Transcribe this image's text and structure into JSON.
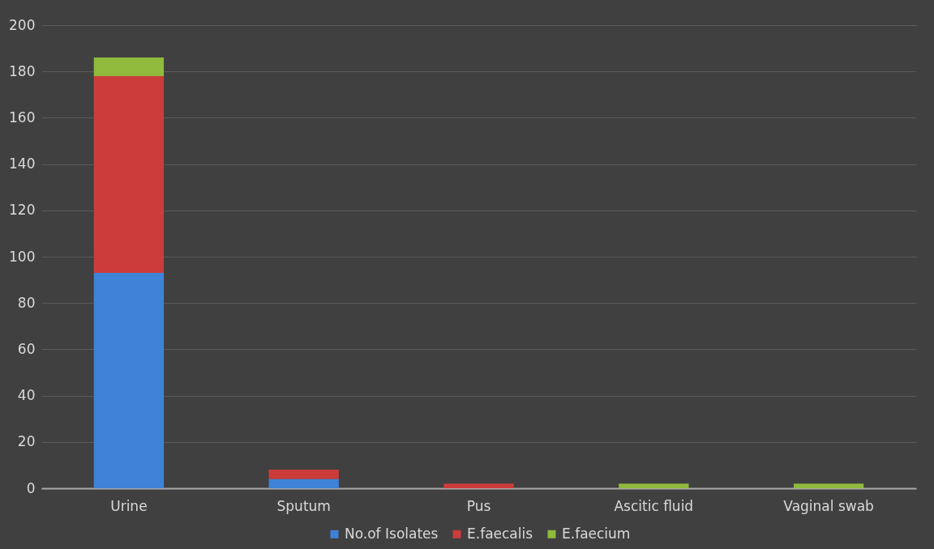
{
  "chart_data": {
    "type": "bar",
    "stacked": true,
    "categories": [
      "Urine",
      "Sputum",
      "Pus",
      "Ascitic fluid",
      "Vaginal swab"
    ],
    "series": [
      {
        "name": "No.of Isolates",
        "color": "#3f83d8",
        "values": [
          93,
          4,
          0,
          0,
          0
        ]
      },
      {
        "name": "E.faecalis",
        "color": "#cc3c3a",
        "values": [
          85,
          4,
          2,
          0,
          0
        ]
      },
      {
        "name": "E.faecium",
        "color": "#8fba3c",
        "values": [
          8,
          0,
          0,
          2,
          2
        ]
      }
    ],
    "ylim": [
      0,
      200
    ],
    "yticks": [
      0,
      20,
      40,
      60,
      80,
      100,
      120,
      140,
      160,
      180,
      200
    ],
    "grid": "y",
    "legend": "bottom"
  }
}
